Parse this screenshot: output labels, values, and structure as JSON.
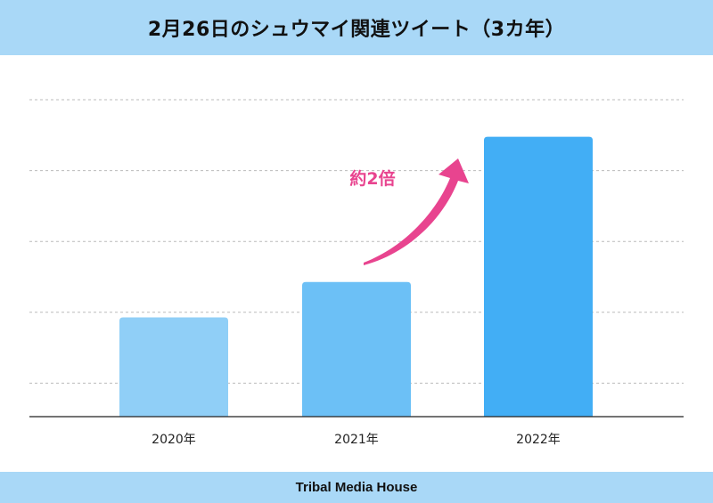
{
  "header": {
    "title": "2月26日のシュウマイ関連ツイート（3カ年）"
  },
  "footer": {
    "brand": "Tribal Media House"
  },
  "colors": {
    "header_bg": "#a9d8f7",
    "bar_2020": "#90cff7",
    "bar_2021": "#6cc0f6",
    "bar_2022": "#42aef5",
    "annotation": "#e8448f",
    "grid": "#bbbbbb"
  },
  "chart_data": {
    "type": "bar",
    "title": "2月26日のシュウマイ関連ツイート（3カ年）",
    "categories": [
      "2020年",
      "2021年",
      "2022年"
    ],
    "values": [
      28,
      38,
      79
    ],
    "xlabel": "",
    "ylabel": "",
    "ylim": [
      0,
      100
    ],
    "grid": true,
    "legend": "none",
    "annotations": [
      {
        "text": "約2倍",
        "from": "2021年",
        "to": "2022年",
        "type": "arrow"
      }
    ]
  }
}
